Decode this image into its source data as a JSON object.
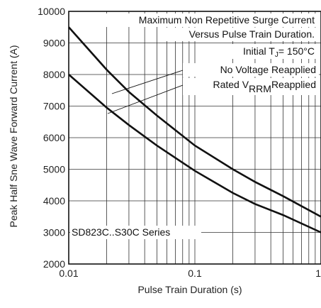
{
  "chart_data": {
    "type": "line",
    "title": "",
    "xlabel": "Pulse Train Duration (s)",
    "ylabel": "Peak Half Sne Wave Forward Current (A)",
    "xscale": "log",
    "xlim": [
      0.01,
      1
    ],
    "ylim": [
      2000,
      10000
    ],
    "x_ticks": [
      0.01,
      0.1,
      1
    ],
    "x_tick_labels": [
      "0.01",
      "0.1",
      "1"
    ],
    "y_ticks": [
      2000,
      3000,
      4000,
      5000,
      6000,
      7000,
      8000,
      9000,
      10000
    ],
    "y_tick_labels": [
      "2000",
      "3000",
      "4000",
      "5000",
      "6000",
      "7000",
      "8000",
      "9000",
      "10000"
    ],
    "grid": true,
    "annotations": {
      "line1": "Maximum Non Repetitive Surge Current",
      "line2": "Versus Pulse Train Duration.",
      "line3_prefix": "Initial T",
      "line3_sub": "J",
      "line3_suffix": "= 150°C",
      "no_voltage": "No Voltage Reapplied",
      "rated_prefix": "Rated V",
      "rated_sub": "RRM",
      "rated_suffix": "Reapplied",
      "series_label": "SD823C..S30C Series"
    },
    "series": [
      {
        "x": [
          0.01,
          0.02,
          0.03,
          0.05,
          0.1,
          0.2,
          0.3,
          0.5,
          1
        ],
        "y": [
          9500,
          8150,
          7450,
          6700,
          5750,
          5000,
          4600,
          4150,
          3500
        ]
      },
      {
        "x": [
          0.01,
          0.02,
          0.03,
          0.05,
          0.1,
          0.2,
          0.3,
          0.5,
          1
        ],
        "y": [
          8000,
          6950,
          6400,
          5750,
          4950,
          4250,
          3900,
          3550,
          3000
        ]
      }
    ]
  }
}
